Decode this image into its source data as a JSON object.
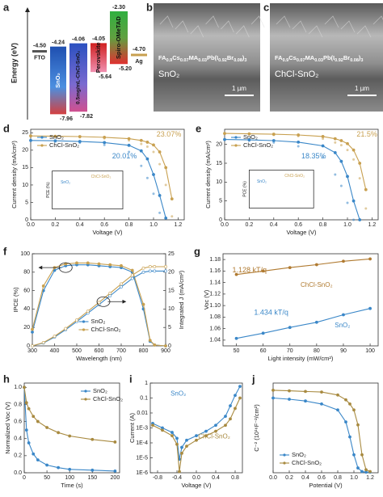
{
  "energy_diagram": {
    "panel": "a",
    "ylabel": "Energy (eV)",
    "electrodes": [
      {
        "name": "FTO",
        "value": -4.5,
        "label": "-4.50"
      },
      {
        "name": "Ag",
        "value": -4.7,
        "label": "-4.70"
      }
    ],
    "layers": [
      {
        "name": "SnO₂",
        "top": -4.24,
        "top_label": "-4.24",
        "bottom": -7.96,
        "bottom_label": "-7.96"
      },
      {
        "name": "0.5mg/mL-ChCl-SnO₂",
        "top": -4.06,
        "top_label": "-4.06",
        "bottom": -7.82,
        "bottom_label": "-7.82"
      },
      {
        "name": "Perovskite",
        "top": -4.05,
        "top_label": "-4.05",
        "bottom": -5.64,
        "bottom_label": "-5.64"
      },
      {
        "name": "Spiro-OMeTAD",
        "top": -2.3,
        "top_label": "-2.30",
        "bottom": -5.2,
        "bottom_label": "-5.20"
      }
    ]
  },
  "sem_images": [
    {
      "panel": "b",
      "formula": "FA0.9Cs0.07MA0.03Pb(I0.92Br0.08)3",
      "layer": "SnO₂",
      "scale": "1 µm"
    },
    {
      "panel": "c",
      "formula": "FA0.9Cs0.07MA0.03Pb(I0.92Br0.08)3",
      "layer": "ChCl-SnO₂",
      "scale": "1 µm"
    }
  ],
  "chart_data": [
    {
      "type": "line",
      "panel": "d",
      "xlabel": "Voltage (V)",
      "ylabel": "Current density (mA/cm²)",
      "x": [
        0,
        0.2,
        0.4,
        0.6,
        0.8,
        0.9,
        0.95,
        1.0,
        1.05,
        1.1,
        1.15,
        1.2
      ],
      "xlim": [
        0,
        1.25
      ],
      "xticks": [
        {
          "value": 0,
          "label": "0.0"
        },
        0.2,
        0.4,
        0.6,
        0.8,
        {
          "value": 1,
          "label": "1.0"
        },
        1.2
      ],
      "ylim": [
        0,
        26
      ],
      "yticks": [
        0,
        5,
        10,
        15,
        20,
        25
      ],
      "legend": "upper left",
      "series": [
        {
          "name": "SnO₂",
          "color": "#3a87c8",
          "values": [
            22.8,
            22.7,
            22.5,
            22.2,
            21.4,
            19.8,
            17.5,
            13,
            7,
            0.5,
            null,
            null
          ],
          "values_forward": [
            22.7,
            22.5,
            22.1,
            21.5,
            19.5,
            15.5,
            12,
            7.5,
            2,
            null,
            null,
            null
          ]
        },
        {
          "name": "ChCl-SnO₂",
          "color": "#c8a050",
          "values": [
            24.1,
            24.0,
            23.9,
            23.7,
            23.3,
            22.8,
            22.3,
            21.5,
            19.5,
            15,
            6,
            null
          ],
          "values_forward": [
            24.0,
            23.9,
            23.7,
            23.4,
            22.8,
            21.8,
            21,
            19.5,
            16,
            10,
            1,
            null
          ]
        }
      ],
      "annotations": [
        {
          "text": "20.01%",
          "color": "#3a87c8"
        },
        {
          "text": "23.07%",
          "color": "#c8a050"
        }
      ],
      "inset": {
        "ylabel": "PCE (%)",
        "categories": [
          "SnO₂",
          "ChCl-SnO₂"
        ]
      }
    },
    {
      "type": "line",
      "panel": "e",
      "xlabel": "Voltage (V)",
      "ylabel": "Current density (mA/cm²)",
      "x": [
        0,
        0.2,
        0.4,
        0.6,
        0.8,
        0.9,
        0.95,
        1.0,
        1.05,
        1.1,
        1.15,
        1.2
      ],
      "xlim": [
        0,
        1.25
      ],
      "xticks": [
        {
          "value": 0,
          "label": "0.0"
        },
        0.2,
        0.4,
        0.6,
        0.8,
        {
          "value": 1,
          "label": "1.0"
        },
        1.2
      ],
      "ylim": [
        0,
        24
      ],
      "yticks": [
        0,
        5,
        10,
        15,
        20
      ],
      "legend": "upper left",
      "series": [
        {
          "name": "SnO₂",
          "color": "#3a87c8",
          "values": [
            21.3,
            21.2,
            21.0,
            20.6,
            19.6,
            17.8,
            15.5,
            11.5,
            5,
            0,
            null,
            null
          ],
          "values_forward": [
            21.2,
            21.0,
            20.5,
            19.5,
            16.5,
            12,
            9,
            4.5,
            0,
            null,
            null,
            null
          ]
        },
        {
          "name": "ChCl-SnO₂",
          "color": "#c8a050",
          "values": [
            22.9,
            22.8,
            22.7,
            22.5,
            22.1,
            21.5,
            21,
            20.2,
            18.5,
            15,
            8,
            null
          ],
          "values_forward": [
            22.8,
            22.7,
            22.5,
            22.2,
            21.5,
            20.5,
            19.8,
            18.5,
            16,
            11,
            3,
            null
          ]
        }
      ],
      "annotations": [
        {
          "text": "18.35%",
          "color": "#3a87c8"
        },
        {
          "text": "21.5%",
          "color": "#c8a050"
        }
      ],
      "inset": {
        "ylabel": "PCE (%)",
        "categories": [
          "SnO₂",
          "ChCl-SnO₂"
        ]
      }
    },
    {
      "type": "line",
      "panel": "f",
      "xlabel": "Wavelength (nm)",
      "ylabel": "IPCE (%)",
      "y2label": "Integrated J (mA/cm²)",
      "x": [
        300,
        350,
        400,
        450,
        500,
        550,
        600,
        650,
        700,
        750,
        800,
        830,
        850,
        900
      ],
      "xlim": [
        300,
        900
      ],
      "xticks": [
        300,
        400,
        500,
        600,
        700,
        800,
        900
      ],
      "ylim": [
        0,
        100
      ],
      "yticks": [
        0,
        20,
        40,
        60,
        80,
        100
      ],
      "y2lim": [
        0,
        25
      ],
      "y2ticks": [
        0,
        5,
        10,
        15,
        20,
        25
      ],
      "legend": "lower center",
      "series": [
        {
          "name": "SnO₂",
          "color": "#3a87c8",
          "values": [
            15,
            60,
            82,
            87,
            88,
            88,
            87,
            86,
            85,
            80,
            40,
            5,
            1,
            0
          ]
        },
        {
          "name": "ChCl-SnO₂",
          "color": "#c8a050",
          "values": [
            18,
            65,
            85,
            89,
            90,
            90,
            89,
            88,
            87,
            82,
            45,
            6,
            1,
            0
          ]
        }
      ],
      "y2_series": [
        {
          "color": "#3a87c8",
          "axis": "y2",
          "values": [
            0,
            0.8,
            2.4,
            4.4,
            6.6,
            8.9,
            11.2,
            13.6,
            16,
            18.3,
            20,
            20.3,
            20.3,
            20.3
          ]
        },
        {
          "color": "#c8a050",
          "axis": "y2",
          "values": [
            0,
            0.9,
            2.6,
            4.7,
            7.0,
            9.4,
            11.8,
            14.3,
            16.8,
            19.2,
            21.1,
            21.5,
            21.5,
            21.5
          ]
        }
      ]
    },
    {
      "type": "line",
      "panel": "g",
      "xlabel": "Light intensity (mW/cm²)",
      "ylabel": "Voc (V)",
      "x": [
        50,
        60,
        70,
        80,
        90,
        100
      ],
      "xlim": [
        45,
        103
      ],
      "xticks": [
        50,
        60,
        70,
        80,
        90,
        100
      ],
      "ylim": [
        1.03,
        1.19
      ],
      "yticks": [
        1.04,
        1.06,
        1.08,
        {
          "value": 1.1,
          "label": "1.10"
        },
        1.12,
        1.14,
        1.16,
        1.18
      ],
      "legend": "direct",
      "series": [
        {
          "name": "ChCl-SnO₂",
          "color": "#b07a30",
          "values": [
            1.154,
            1.16,
            1.166,
            1.171,
            1.177,
            1.181
          ]
        },
        {
          "name": "SnO₂",
          "color": "#3a87c8",
          "values": [
            1.043,
            1.052,
            1.062,
            1.071,
            1.084,
            1.095
          ]
        }
      ],
      "annotations": [
        {
          "text": "1.128 kT/q",
          "color": "#b07a30"
        },
        {
          "text": "1.434 kT/q",
          "color": "#3a87c8"
        }
      ]
    },
    {
      "type": "line",
      "panel": "h",
      "xlabel": "Time (s)",
      "ylabel": "Normalized Voc (V)",
      "x": [
        0,
        5,
        10,
        20,
        30,
        50,
        75,
        100,
        150,
        200
      ],
      "xlim": [
        0,
        210
      ],
      "xticks": [
        0,
        50,
        100,
        150,
        200
      ],
      "ylim": [
        0,
        1.05
      ],
      "yticks": [
        {
          "value": 0,
          "label": "0.0"
        },
        0.2,
        0.4,
        0.6,
        0.8,
        {
          "value": 1,
          "label": "1.0"
        }
      ],
      "legend": "upper right",
      "series": [
        {
          "name": "SnO₂",
          "color": "#3a87c8",
          "values": [
            1,
            0.5,
            0.35,
            0.22,
            0.15,
            0.09,
            0.06,
            0.04,
            0.03,
            0.02
          ]
        },
        {
          "name": "ChCl-SnO₂",
          "color": "#a88a40",
          "values": [
            1,
            0.82,
            0.75,
            0.66,
            0.6,
            0.53,
            0.47,
            0.43,
            0.39,
            0.36
          ]
        }
      ]
    },
    {
      "type": "line",
      "panel": "i",
      "xlabel": "Voltage (V)",
      "ylabel": "Current (A)",
      "log_y": true,
      "x": [
        -0.9,
        -0.7,
        -0.5,
        -0.4,
        -0.35,
        -0.3,
        -0.2,
        0,
        0.2,
        0.4,
        0.6,
        0.7,
        0.8,
        0.9
      ],
      "xlim": [
        -0.95,
        0.95
      ],
      "xticks": [
        -0.8,
        -0.4,
        {
          "value": 0,
          "label": "0.0"
        },
        0.4,
        0.8
      ],
      "ylim": [
        1e-06,
        1
      ],
      "yticks": [
        {
          "value": 1e-06,
          "label": "1E-6"
        },
        {
          "value": 1e-05,
          "label": "1E-5"
        },
        {
          "value": 0.0001,
          "label": "1E-4"
        },
        {
          "value": 0.001,
          "label": "1E-3"
        },
        0.01,
        0.1,
        1
      ],
      "legend": "direct",
      "series": [
        {
          "name": "SnO₂",
          "color": "#3a87c8",
          "values": [
            0.002,
            0.001,
            0.0005,
            0.0002,
            8e-06,
            5e-05,
            0.00015,
            0.0003,
            0.0006,
            0.0015,
            0.006,
            0.03,
            0.15,
            0.6
          ]
        },
        {
          "name": "ChCl-SnO₂",
          "color": "#a88a40",
          "values": [
            0.0015,
            0.0007,
            0.0003,
            8e-05,
            1.2e-06,
            2e-05,
            6e-05,
            0.00015,
            0.0003,
            0.0006,
            0.0015,
            0.004,
            0.02,
            0.1
          ]
        }
      ]
    },
    {
      "type": "line",
      "panel": "j",
      "xlabel": "Potential (V)",
      "ylabel": "C⁻² (10¹⁶F⁻²/cm²)",
      "x": [
        0,
        0.2,
        0.4,
        0.6,
        0.8,
        0.9,
        0.95,
        1.0,
        1.05,
        1.1,
        1.15,
        1.2
      ],
      "xlim": [
        0,
        1.3
      ],
      "xticks": [
        {
          "value": 0,
          "label": "0.0"
        },
        0.2,
        0.4,
        0.6,
        0.8,
        {
          "value": 1,
          "label": "1.0"
        },
        1.2
      ],
      "ylim": [
        0,
        1.5
      ],
      "legend": "lower left",
      "series": [
        {
          "name": "SnO₂",
          "color": "#3a87c8",
          "values": [
            1.25,
            1.23,
            1.2,
            1.15,
            1.05,
            0.85,
            0.6,
            0.3,
            0.08,
            0.02,
            0.01,
            0.01
          ]
        },
        {
          "name": "ChCl-SnO₂",
          "color": "#a88a40",
          "values": [
            1.38,
            1.37,
            1.36,
            1.35,
            1.3,
            1.22,
            1.15,
            1.05,
            0.8,
            0.3,
            0.05,
            0.02
          ]
        }
      ]
    }
  ]
}
